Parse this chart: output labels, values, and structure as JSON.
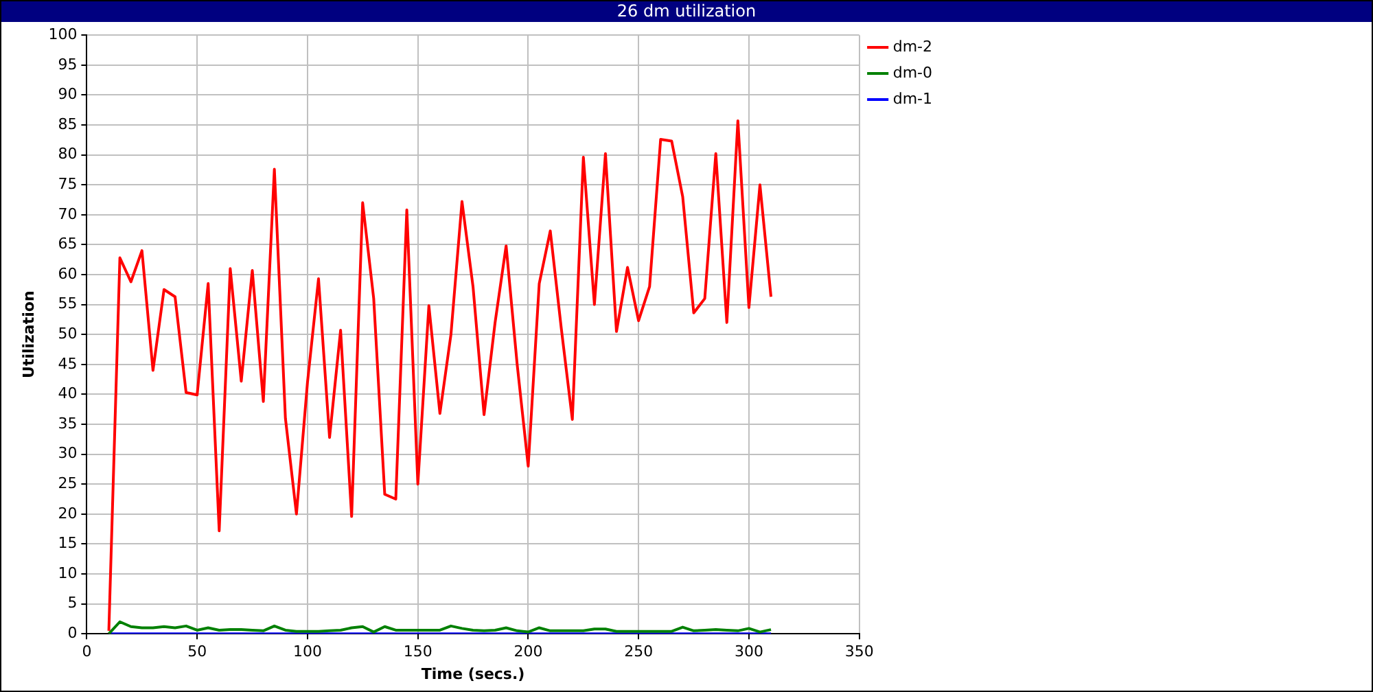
{
  "chart_data": {
    "type": "line",
    "title": "26 dm utilization",
    "xlabel": "Time (secs.)",
    "ylabel": "Utilization",
    "x": [
      10,
      15,
      20,
      25,
      30,
      35,
      40,
      45,
      50,
      55,
      60,
      65,
      70,
      75,
      80,
      85,
      90,
      95,
      100,
      105,
      110,
      115,
      120,
      125,
      130,
      135,
      140,
      145,
      150,
      155,
      160,
      165,
      170,
      175,
      180,
      185,
      190,
      195,
      200,
      205,
      210,
      215,
      220,
      225,
      230,
      235,
      240,
      245,
      250,
      255,
      260,
      265,
      270,
      275,
      280,
      285,
      290,
      295,
      300,
      305,
      310
    ],
    "series": [
      {
        "name": "dm-2",
        "color": "#ff0000",
        "values": [
          0.5,
          62.8,
          58.8,
          64,
          44,
          57.5,
          56.3,
          40.3,
          39.9,
          58.5,
          17.2,
          61,
          42.2,
          60.7,
          38.8,
          77.6,
          36,
          20,
          42,
          59.3,
          32.8,
          50.7,
          19.6,
          72,
          56,
          23.3,
          22.5,
          70.8,
          25,
          54.8,
          36.8,
          50,
          72.2,
          58,
          36.6,
          52,
          64.8,
          45,
          28,
          58.5,
          67.3,
          51,
          35.8,
          79.6,
          55,
          80.2,
          50.5,
          61.2,
          52.3,
          58,
          82.6,
          82.3,
          73,
          53.6,
          56,
          80.2,
          52,
          85.7,
          54.5,
          75,
          56.3
        ]
      },
      {
        "name": "dm-0",
        "color": "#008000",
        "values": [
          0,
          2,
          1.2,
          1,
          1,
          1.2,
          1,
          1.3,
          0.6,
          1,
          0.6,
          0.7,
          0.7,
          0.6,
          0.5,
          1.3,
          0.6,
          0.4,
          0.4,
          0.4,
          0.5,
          0.6,
          1,
          1.2,
          0.3,
          1.2,
          0.6,
          0.6,
          0.6,
          0.6,
          0.6,
          1.3,
          0.9,
          0.6,
          0.5,
          0.6,
          1,
          0.5,
          0.3,
          1,
          0.5,
          0.5,
          0.5,
          0.5,
          0.8,
          0.8,
          0.4,
          0.4,
          0.4,
          0.4,
          0.4,
          0.4,
          1.1,
          0.5,
          0.6,
          0.7,
          0.6,
          0.5,
          0.9,
          0.3,
          0.7
        ]
      },
      {
        "name": "dm-1",
        "color": "#0000ff",
        "values": [
          0,
          0,
          0,
          0,
          0,
          0,
          0,
          0,
          0,
          0,
          0,
          0,
          0,
          0,
          0,
          0,
          0,
          0,
          0,
          0,
          0,
          0,
          0,
          0,
          0,
          0,
          0,
          0,
          0,
          0,
          0,
          0,
          0,
          0,
          0,
          0,
          0,
          0,
          0,
          0,
          0,
          0,
          0,
          0,
          0,
          0,
          0,
          0,
          0,
          0,
          0,
          0,
          0,
          0,
          0,
          0,
          0,
          0,
          0,
          0,
          0
        ]
      }
    ],
    "xlim": [
      0,
      350
    ],
    "xticks": [
      0,
      50,
      100,
      150,
      200,
      250,
      300,
      350
    ],
    "ylim": [
      0,
      100
    ],
    "yticks": [
      0,
      5,
      10,
      15,
      20,
      25,
      30,
      35,
      40,
      45,
      50,
      55,
      60,
      65,
      70,
      75,
      80,
      85,
      90,
      95,
      100
    ],
    "grid": true,
    "legend": "right",
    "marker": "none",
    "line_style": "solid"
  }
}
